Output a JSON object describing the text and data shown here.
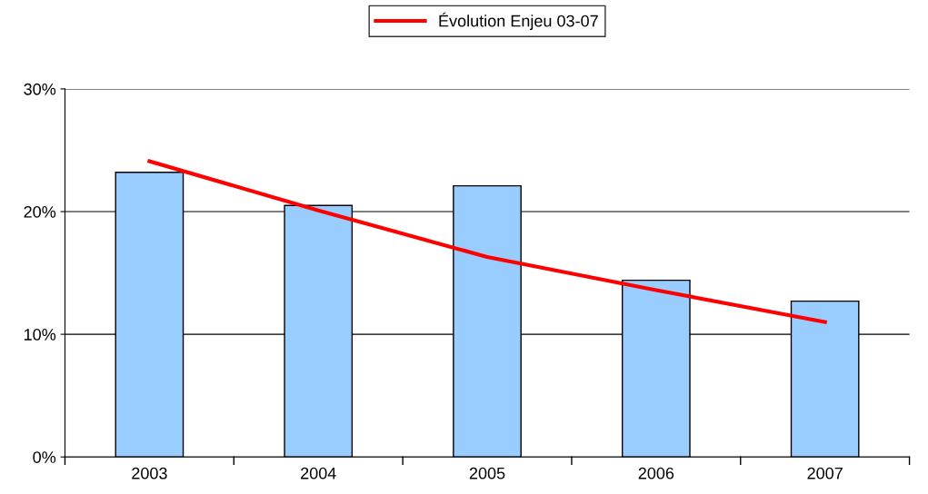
{
  "chart_data": {
    "type": "bar",
    "categories": [
      "2003",
      "2004",
      "2005",
      "2006",
      "2007"
    ],
    "series": [
      {
        "color": "#99ccff",
        "values": [
          23.2,
          20.5,
          22.1,
          14.4,
          12.7
        ]
      },
      {
        "type": "line",
        "name": "Évolution Enjeu 03-07",
        "color": "#ff0000",
        "values": [
          24.1,
          20.1,
          16.3,
          13.6,
          11.0
        ]
      }
    ],
    "ylim": [
      0,
      30
    ],
    "yticks": [
      {
        "value": 0,
        "label": "0%"
      },
      {
        "value": 10,
        "label": "10%"
      },
      {
        "value": 20,
        "label": "20%"
      },
      {
        "value": 30,
        "label": "30%"
      }
    ],
    "grid": "y",
    "legend": "top",
    "marker": "none",
    "line_style": "solid"
  }
}
